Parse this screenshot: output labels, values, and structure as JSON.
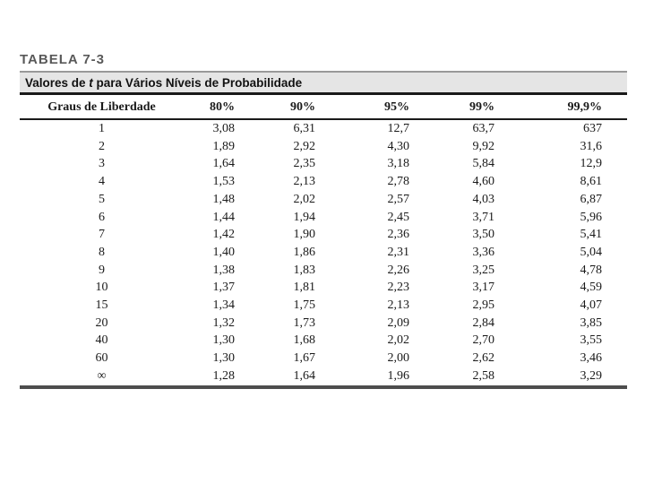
{
  "slide": {
    "label": "TABELA 7-3"
  },
  "table": {
    "caption_prefix": "Valores de ",
    "caption_italic": "t",
    "caption_suffix": " para Vários Níveis de Probabilidade",
    "columns": [
      "Graus de Liberdade",
      "80%",
      "90%",
      "95%",
      "99%",
      "99,9%"
    ],
    "rows": [
      [
        "1",
        "3,08",
        "6,31",
        "12,7",
        "63,7",
        "637"
      ],
      [
        "2",
        "1,89",
        "2,92",
        "4,30",
        "9,92",
        "31,6"
      ],
      [
        "3",
        "1,64",
        "2,35",
        "3,18",
        "5,84",
        "12,9"
      ],
      [
        "4",
        "1,53",
        "2,13",
        "2,78",
        "4,60",
        "8,61"
      ],
      [
        "5",
        "1,48",
        "2,02",
        "2,57",
        "4,03",
        "6,87"
      ],
      [
        "6",
        "1,44",
        "1,94",
        "2,45",
        "3,71",
        "5,96"
      ],
      [
        "7",
        "1,42",
        "1,90",
        "2,36",
        "3,50",
        "5,41"
      ],
      [
        "8",
        "1,40",
        "1,86",
        "2,31",
        "3,36",
        "5,04"
      ],
      [
        "9",
        "1,38",
        "1,83",
        "2,26",
        "3,25",
        "4,78"
      ],
      [
        "10",
        "1,37",
        "1,81",
        "2,23",
        "3,17",
        "4,59"
      ],
      [
        "15",
        "1,34",
        "1,75",
        "2,13",
        "2,95",
        "4,07"
      ],
      [
        "20",
        "1,32",
        "1,73",
        "2,09",
        "2,84",
        "3,85"
      ],
      [
        "40",
        "1,30",
        "1,68",
        "2,02",
        "2,70",
        "3,55"
      ],
      [
        "60",
        "1,30",
        "1,67",
        "2,00",
        "2,62",
        "3,46"
      ],
      [
        "∞",
        "1,28",
        "1,64",
        "1,96",
        "2,58",
        "3,29"
      ]
    ]
  },
  "colors": {
    "title_color": "#595959",
    "caption_bg": "#e5e5e5",
    "rule_gray": "#999999",
    "rule_black": "#1a1a1a",
    "rule_bottom": "#4d4d4d",
    "text_color": "#1a1a1a"
  }
}
